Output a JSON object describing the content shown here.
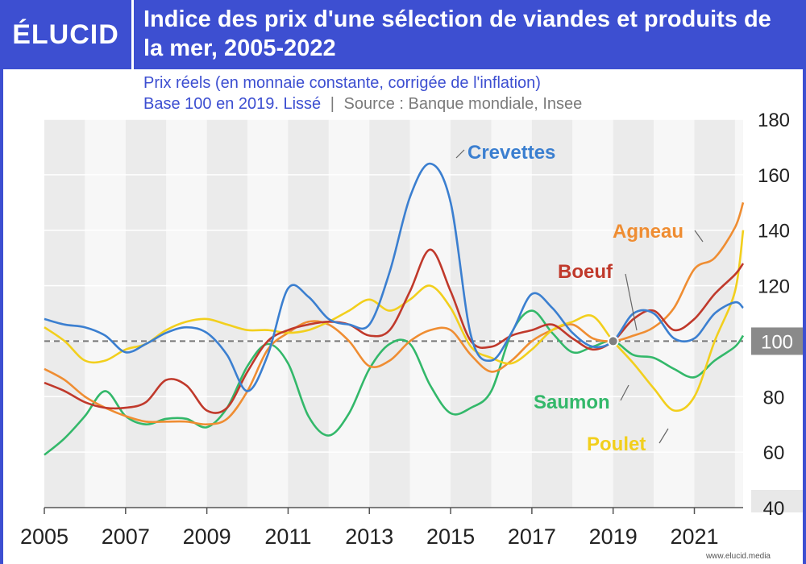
{
  "brand": {
    "logo": "ÉLUCID",
    "website": "www.elucid.media"
  },
  "title": "Indice des prix d'une sélection de viandes et produits de la mer, 2005-2022",
  "subtitle_line1": "Prix réels (en monnaie constante, corrigée de l'inflation)",
  "subtitle_line2": "Base 100 en 2019. Lissé",
  "subtitle_sep": "|",
  "source": "Source : Banque mondiale, Insee",
  "colors": {
    "header": "#3d4fd1",
    "Crevettes": "#3b7fd0",
    "Agneau": "#ef8d32",
    "Boeuf": "#c0392b",
    "Saumon": "#33b86a",
    "Poulet": "#f2cf1d"
  },
  "chart_data": {
    "type": "line",
    "title": "Indice des prix d'une sélection de viandes et produits de la mer, 2005-2022",
    "xlabel": "",
    "ylabel": "",
    "xlim": [
      2005,
      2022.2
    ],
    "ylim": [
      40,
      180
    ],
    "y_ticks": [
      180,
      160,
      140,
      120,
      100,
      80,
      60,
      40
    ],
    "x_ticks": [
      "2005",
      "2007",
      "2009",
      "2011",
      "2013",
      "2015",
      "2017",
      "2019",
      "2021"
    ],
    "reference_line": {
      "y": 100,
      "label": "100"
    },
    "legend": "inline labels",
    "series": [
      {
        "name": "Crevettes",
        "x": [
          2005,
          2005.5,
          2006,
          2006.5,
          2007,
          2007.5,
          2008,
          2008.5,
          2009,
          2009.5,
          2010,
          2010.5,
          2011,
          2011.5,
          2012,
          2012.5,
          2013,
          2013.5,
          2014,
          2014.5,
          2015,
          2015.5,
          2016,
          2016.5,
          2017,
          2017.5,
          2018,
          2018.5,
          2019,
          2019.5,
          2020,
          2020.5,
          2021,
          2021.5,
          2022,
          2022.2
        ],
        "y": [
          108,
          106,
          105,
          102,
          96,
          99,
          103,
          105,
          103,
          95,
          82,
          95,
          119,
          116,
          108,
          106,
          106,
          125,
          152,
          164,
          150,
          102,
          93,
          103,
          117,
          112,
          103,
          98,
          100,
          110,
          110,
          101,
          101,
          110,
          114,
          112
        ]
      },
      {
        "name": "Agneau",
        "x": [
          2005,
          2005.5,
          2006,
          2006.5,
          2007,
          2007.5,
          2008,
          2008.5,
          2009,
          2009.5,
          2010,
          2010.5,
          2011,
          2011.5,
          2012,
          2012.5,
          2013,
          2013.5,
          2014,
          2014.5,
          2015,
          2015.5,
          2016,
          2016.5,
          2017,
          2017.5,
          2018,
          2018.5,
          2019,
          2019.5,
          2020,
          2020.5,
          2021,
          2021.5,
          2022,
          2022.2
        ],
        "y": [
          90,
          86,
          80,
          76,
          73,
          71,
          71,
          71,
          70,
          72,
          82,
          97,
          103,
          107,
          106,
          100,
          91,
          93,
          100,
          104,
          104,
          95,
          89,
          93,
          100,
          104,
          106,
          101,
          100,
          102,
          105,
          112,
          126,
          130,
          141,
          150
        ]
      },
      {
        "name": "Boeuf",
        "x": [
          2005,
          2005.5,
          2006,
          2006.5,
          2007,
          2007.5,
          2008,
          2008.5,
          2009,
          2009.5,
          2010,
          2010.5,
          2011,
          2011.5,
          2012,
          2012.5,
          2013,
          2013.5,
          2014,
          2014.5,
          2015,
          2015.5,
          2016,
          2016.5,
          2017,
          2017.5,
          2018,
          2018.5,
          2019,
          2019.5,
          2020,
          2020.5,
          2021,
          2021.5,
          2022,
          2022.2
        ],
        "y": [
          85,
          82,
          78,
          76,
          76,
          78,
          86,
          84,
          75,
          76,
          89,
          100,
          104,
          106,
          107,
          106,
          102,
          104,
          118,
          133,
          118,
          100,
          98,
          102,
          104,
          106,
          101,
          97,
          100,
          108,
          111,
          104,
          108,
          117,
          124,
          128
        ]
      },
      {
        "name": "Saumon",
        "x": [
          2005,
          2005.5,
          2006,
          2006.5,
          2007,
          2007.5,
          2008,
          2008.5,
          2009,
          2009.5,
          2010,
          2010.5,
          2011,
          2011.5,
          2012,
          2012.5,
          2013,
          2013.5,
          2014,
          2014.5,
          2015,
          2015.5,
          2016,
          2016.5,
          2017,
          2017.5,
          2018,
          2018.5,
          2019,
          2019.5,
          2020,
          2020.5,
          2021,
          2021.5,
          2022,
          2022.2
        ],
        "y": [
          59,
          65,
          73,
          82,
          73,
          70,
          72,
          72,
          69,
          76,
          91,
          99,
          92,
          73,
          66,
          74,
          90,
          99,
          99,
          84,
          74,
          76,
          82,
          103,
          111,
          103,
          96,
          98,
          100,
          95,
          94,
          90,
          87,
          93,
          98,
          102
        ]
      },
      {
        "name": "Poulet",
        "x": [
          2005,
          2005.5,
          2006,
          2006.5,
          2007,
          2007.5,
          2008,
          2008.5,
          2009,
          2009.5,
          2010,
          2010.5,
          2011,
          2011.5,
          2012,
          2012.5,
          2013,
          2013.5,
          2014,
          2014.5,
          2015,
          2015.5,
          2016,
          2016.5,
          2017,
          2017.5,
          2018,
          2018.5,
          2019,
          2019.5,
          2020,
          2020.5,
          2021,
          2021.5,
          2022,
          2022.2
        ],
        "y": [
          105,
          100,
          93,
          93,
          97,
          99,
          104,
          107,
          108,
          106,
          104,
          104,
          103,
          104,
          107,
          111,
          115,
          111,
          115,
          120,
          112,
          98,
          94,
          92,
          97,
          104,
          107,
          109,
          100,
          92,
          83,
          75,
          80,
          100,
          118,
          140
        ]
      }
    ],
    "annotations": [
      {
        "text": "Crevettes",
        "series": "Crevettes"
      },
      {
        "text": "Agneau",
        "series": "Agneau"
      },
      {
        "text": "Boeuf",
        "series": "Boeuf"
      },
      {
        "text": "Saumon",
        "series": "Saumon"
      },
      {
        "text": "Poulet",
        "series": "Poulet"
      }
    ]
  }
}
